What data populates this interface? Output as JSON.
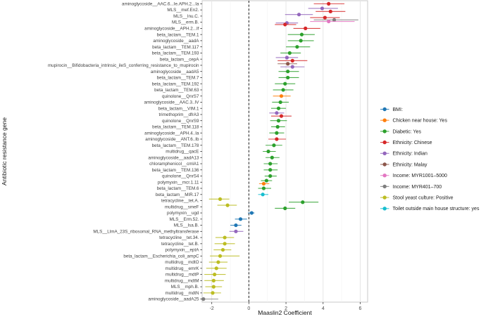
{
  "figure": {
    "xlabel": "Maaslin2 Coefficient",
    "ylabel": "Antibiotic resistance gene"
  },
  "chart_data": {
    "type": "scatter",
    "subtype": "forest-pointrange",
    "title": "",
    "xlabel": "Maaslin2 Coefficient",
    "ylabel": "Antibiotic resistance gene",
    "xlim": [
      -2.52,
      6.4
    ],
    "xticks": [
      -2,
      0,
      2,
      4,
      6
    ],
    "xtick_labels": [
      "-2",
      "0",
      "2",
      "4",
      "6"
    ],
    "minor_gridlines": [
      -1,
      1,
      3,
      5
    ],
    "zero_line": 0,
    "grid": true,
    "legend_position": "right",
    "legend": [
      {
        "label": "BMI:",
        "color": "#1f77b4"
      },
      {
        "label": "Chicken near house: Yes",
        "color": "#ff7f0e"
      },
      {
        "label": "Diabetic: Yes",
        "color": "#2ca02c"
      },
      {
        "label": "Ethnicity: Chinese",
        "color": "#d62728"
      },
      {
        "label": "Ethnicity: Indian",
        "color": "#9467bd"
      },
      {
        "label": "Ethnicity: Malay",
        "color": "#8c564b"
      },
      {
        "label": "Income: MYR1001–5000",
        "color": "#e377c2"
      },
      {
        "label": "Income: MYR401–700",
        "color": "#7f7f7f"
      },
      {
        "label": "Stool yeast culture: Positive",
        "color": "#bcbd22"
      },
      {
        "label": "Toilet outside main house structure: yes",
        "color": "#17becf"
      }
    ],
    "rows": [
      {
        "gene": "aminoglycoside__AAC.6...Ie.APH.2...Ia",
        "points": [
          {
            "g": 3,
            "x": 4.3,
            "lo": 3.5,
            "hi": 5.15
          }
        ]
      },
      {
        "gene": "MLS__mef.En2.",
        "points": [
          {
            "g": 4,
            "x": 3.95,
            "lo": 3.2,
            "hi": 4.8
          },
          {
            "g": 3,
            "x": 4.4,
            "lo": 3.6,
            "hi": 5.2
          }
        ]
      },
      {
        "gene": "MLS__lnu.C.",
        "points": [
          {
            "g": 4,
            "x": 2.7,
            "lo": 1.95,
            "hi": 3.45
          },
          {
            "g": 3,
            "x": 4.1,
            "lo": 3.3,
            "hi": 4.9
          }
        ]
      },
      {
        "gene": "MLS__erm.B.",
        "points": [
          {
            "g": 7,
            "x": 4.6,
            "lo": 3.5,
            "hi": 5.9
          },
          {
            "g": 6,
            "x": 4.3,
            "lo": 3.3,
            "hi": 5.7
          },
          {
            "g": 4,
            "x": 2.05,
            "lo": 1.45,
            "hi": 2.65
          },
          {
            "g": 3,
            "x": 1.95,
            "lo": 1.4,
            "hi": 2.55
          }
        ]
      },
      {
        "gene": "aminoglycoside__APH.2...If",
        "points": [
          {
            "g": 3,
            "x": 3.05,
            "lo": 2.4,
            "hi": 3.85
          }
        ]
      },
      {
        "gene": "beta_lactam__TEM.1",
        "points": [
          {
            "g": 2,
            "x": 2.85,
            "lo": 2.1,
            "hi": 3.55
          }
        ]
      },
      {
        "gene": "aminoglycoside__aadA",
        "points": [
          {
            "g": 2,
            "x": 2.8,
            "lo": 2.1,
            "hi": 3.5
          }
        ]
      },
      {
        "gene": "beta_lactam__TEM.117",
        "points": [
          {
            "g": 2,
            "x": 2.6,
            "lo": 2.0,
            "hi": 3.3
          }
        ]
      },
      {
        "gene": "beta_lactam__TEM.193",
        "points": [
          {
            "g": 2,
            "x": 2.2,
            "lo": 1.7,
            "hi": 2.8
          }
        ]
      },
      {
        "gene": "beta_lactam__cepA",
        "points": [
          {
            "g": 4,
            "x": 2.05,
            "lo": 1.45,
            "hi": 2.65
          },
          {
            "g": 3,
            "x": 2.35,
            "lo": 1.55,
            "hi": 3.15
          }
        ]
      },
      {
        "gene": "mupirocin__Bifidobacteria_intrinsic_ileS_conferring_resistance_to_mupirocin",
        "points": [
          {
            "g": 5,
            "x": 2.1,
            "lo": 1.55,
            "hi": 2.6
          },
          {
            "g": 4,
            "x": 2.35,
            "lo": 1.7,
            "hi": 3.0
          }
        ]
      },
      {
        "gene": "aminoglycoside__aadA5",
        "points": [
          {
            "g": 2,
            "x": 2.1,
            "lo": 1.6,
            "hi": 2.7
          }
        ]
      },
      {
        "gene": "beta_lactam__TEM.7",
        "points": [
          {
            "g": 2,
            "x": 2.1,
            "lo": 1.6,
            "hi": 2.7
          }
        ]
      },
      {
        "gene": "beta_lactam__TEM.192",
        "points": [
          {
            "g": 2,
            "x": 1.95,
            "lo": 1.4,
            "hi": 2.5
          }
        ]
      },
      {
        "gene": "beta_lactam__TEM.63",
        "points": [
          {
            "g": 2,
            "x": 1.85,
            "lo": 1.3,
            "hi": 2.4
          }
        ]
      },
      {
        "gene": "quinolone__QnrS7",
        "points": [
          {
            "g": 1,
            "x": 1.75,
            "lo": 1.3,
            "hi": 2.25
          }
        ]
      },
      {
        "gene": "aminoglycoside__AAC.3..IV",
        "points": [
          {
            "g": 2,
            "x": 1.7,
            "lo": 1.25,
            "hi": 2.15
          }
        ]
      },
      {
        "gene": "beta_lactam__VIM.1",
        "points": [
          {
            "g": 2,
            "x": 1.6,
            "lo": 1.2,
            "hi": 2.0
          }
        ]
      },
      {
        "gene": "trimethoprim__dfrA3",
        "points": [
          {
            "g": 4,
            "x": 1.5,
            "lo": 1.1,
            "hi": 1.9
          },
          {
            "g": 3,
            "x": 1.75,
            "lo": 1.2,
            "hi": 2.3
          }
        ]
      },
      {
        "gene": "quinolone__QnrS9",
        "points": [
          {
            "g": 2,
            "x": 1.6,
            "lo": 1.15,
            "hi": 2.05
          }
        ]
      },
      {
        "gene": "beta_lactam__TEM.118",
        "points": [
          {
            "g": 2,
            "x": 1.55,
            "lo": 1.2,
            "hi": 1.95
          }
        ]
      },
      {
        "gene": "aminoglycoside__APH.4..Ia",
        "points": [
          {
            "g": 2,
            "x": 1.5,
            "lo": 1.1,
            "hi": 1.9
          }
        ]
      },
      {
        "gene": "aminoglycoside__ANT.6..Ib",
        "points": [
          {
            "g": 3,
            "x": 1.5,
            "lo": 1.05,
            "hi": 2.0
          }
        ]
      },
      {
        "gene": "beta_lactam__TEM.178",
        "points": [
          {
            "g": 2,
            "x": 1.35,
            "lo": 0.9,
            "hi": 1.8
          }
        ]
      },
      {
        "gene": "multidrug__qacE",
        "points": [
          {
            "g": 2,
            "x": 1.05,
            "lo": 0.75,
            "hi": 1.45
          }
        ]
      },
      {
        "gene": "aminoglycoside__aadA13",
        "points": [
          {
            "g": 2,
            "x": 1.25,
            "lo": 0.9,
            "hi": 1.65
          }
        ]
      },
      {
        "gene": "chloramphenicol__cmlA1",
        "points": [
          {
            "g": 2,
            "x": 1.15,
            "lo": 0.8,
            "hi": 1.55
          }
        ]
      },
      {
        "gene": "beta_lactam__TEM.136",
        "points": [
          {
            "g": 2,
            "x": 1.15,
            "lo": 0.8,
            "hi": 1.55
          }
        ]
      },
      {
        "gene": "quinolone__QnrS4",
        "points": [
          {
            "g": 2,
            "x": 1.15,
            "lo": 0.85,
            "hi": 1.5
          }
        ]
      },
      {
        "gene": "polymyxin__mcr.1.11",
        "points": [
          {
            "g": 2,
            "x": 0.95,
            "lo": 0.65,
            "hi": 1.25
          },
          {
            "g": 1,
            "x": 0.8,
            "lo": 0.55,
            "hi": 1.1
          }
        ]
      },
      {
        "gene": "beta_lactam__TEM.6",
        "points": [
          {
            "g": 2,
            "x": 0.8,
            "lo": 0.5,
            "hi": 1.2
          }
        ]
      },
      {
        "gene": "beta_lactam__MIR.17",
        "points": [
          {
            "g": 9,
            "x": 0.75,
            "lo": 0.5,
            "hi": 1.05
          }
        ]
      },
      {
        "gene": "tetracycline__tet.A.",
        "points": [
          {
            "g": 8,
            "x": -1.55,
            "lo": -2.15,
            "hi": -1.05
          },
          {
            "g": 2,
            "x": 2.9,
            "lo": 2.15,
            "hi": 3.75
          }
        ]
      },
      {
        "gene": "multidrug__smeF",
        "points": [
          {
            "g": 8,
            "x": -1.15,
            "lo": -1.7,
            "hi": -0.65
          },
          {
            "g": 2,
            "x": 1.95,
            "lo": 1.4,
            "hi": 2.5
          }
        ]
      },
      {
        "gene": "polymyxin__ugd",
        "points": [
          {
            "g": 0,
            "x": 0.15,
            "lo": -0.05,
            "hi": 0.3
          }
        ]
      },
      {
        "gene": "MLS__Erm.52.",
        "points": [
          {
            "g": 0,
            "x": -0.45,
            "lo": -0.75,
            "hi": -0.1
          }
        ]
      },
      {
        "gene": "MLS__lsa.B.",
        "points": [
          {
            "g": 0,
            "x": -0.7,
            "lo": -1.0,
            "hi": -0.4
          }
        ]
      },
      {
        "gene": "MLS__LlmA_23S_ribosomal_RNA_methyltransferase",
        "points": [
          {
            "g": 4,
            "x": -0.7,
            "lo": -1.05,
            "hi": -0.3
          }
        ]
      },
      {
        "gene": "tetracycline__tet.34.",
        "points": [
          {
            "g": 8,
            "x": -1.3,
            "lo": -1.8,
            "hi": -0.8
          }
        ]
      },
      {
        "gene": "tetracycline__tet.B.",
        "points": [
          {
            "g": 8,
            "x": -1.3,
            "lo": -1.85,
            "hi": -0.75
          }
        ]
      },
      {
        "gene": "polymyxin__eptA",
        "points": [
          {
            "g": 8,
            "x": -1.4,
            "lo": -1.9,
            "hi": -0.95
          }
        ]
      },
      {
        "gene": "beta_lactam__Escherichia_coli_ampC",
        "points": [
          {
            "g": 8,
            "x": -1.55,
            "lo": -2.1,
            "hi": -0.5
          }
        ]
      },
      {
        "gene": "multidrug__mdtO",
        "points": [
          {
            "g": 8,
            "x": -1.65,
            "lo": -2.15,
            "hi": -1.15
          }
        ]
      },
      {
        "gene": "multidrug__emrK",
        "points": [
          {
            "g": 8,
            "x": -1.75,
            "lo": -2.3,
            "hi": -1.2
          }
        ]
      },
      {
        "gene": "multidrug__mdtP",
        "points": [
          {
            "g": 8,
            "x": -1.85,
            "lo": -2.4,
            "hi": -1.25
          }
        ]
      },
      {
        "gene": "multidrug__mdtM",
        "points": [
          {
            "g": 8,
            "x": -1.9,
            "lo": -2.4,
            "hi": -1.35
          }
        ]
      },
      {
        "gene": "MLS__mph.B.",
        "points": [
          {
            "g": 8,
            "x": -1.9,
            "lo": -2.35,
            "hi": -1.45
          }
        ]
      },
      {
        "gene": "multidrug__mdtN",
        "points": [
          {
            "g": 8,
            "x": -1.95,
            "lo": -2.45,
            "hi": -1.5
          }
        ]
      },
      {
        "gene": "aminoglycoside__aadA25",
        "points": [
          {
            "g": 7,
            "x": -2.45,
            "lo": -3.0,
            "hi": -1.65
          }
        ]
      }
    ]
  }
}
